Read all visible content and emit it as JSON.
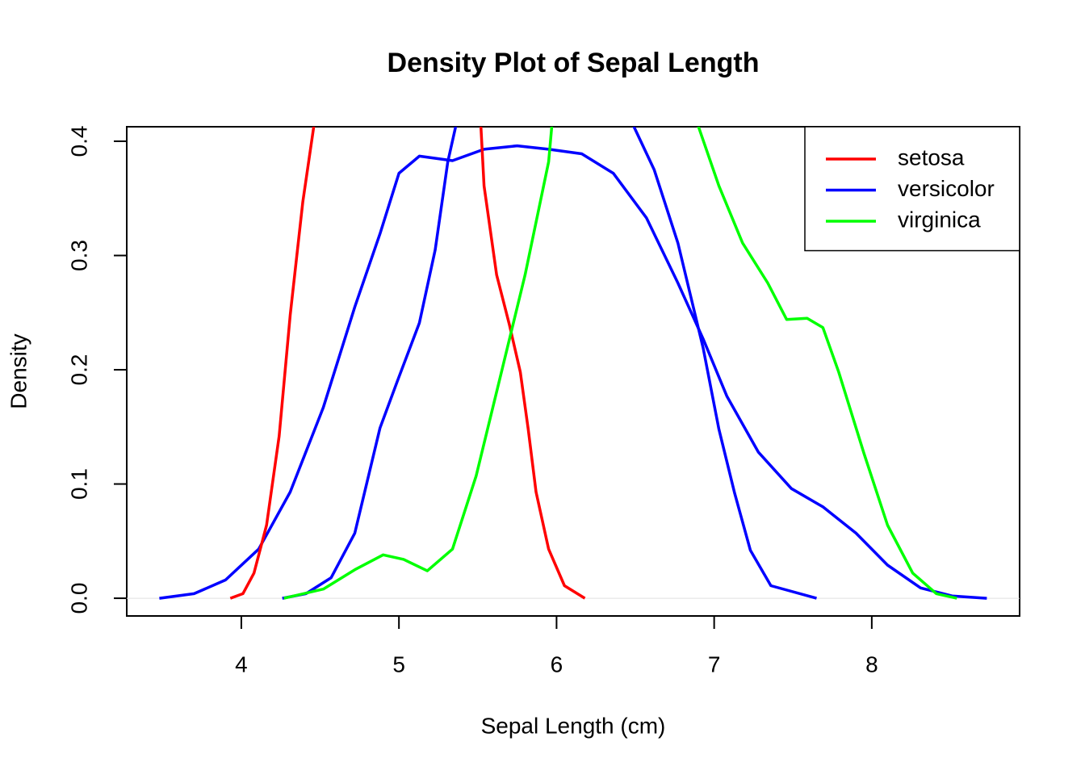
{
  "chart_data": {
    "type": "line",
    "title": "Density Plot of Sepal Length",
    "x_label": "Sepal Length (cm)",
    "y_label": "Density",
    "xlim": [
      3.273,
      8.938
    ],
    "ylim": [
      -0.0155,
      0.4127
    ],
    "xticks": [
      4,
      5,
      6,
      7,
      8
    ],
    "yticks": [
      {
        "value": 0,
        "label": "0.0"
      },
      0.1,
      0.2,
      0.3,
      0.4
    ],
    "zero_line": true,
    "legend": "top-right",
    "series": [
      {
        "color": "#0000ff",
        "x": [
          3.48,
          3.7,
          3.9,
          4.11,
          4.31,
          4.52,
          4.72,
          4.88,
          5.0,
          5.13,
          5.34,
          5.54,
          5.75,
          5.95,
          6.16,
          6.36,
          6.57,
          6.77,
          6.93,
          7.08,
          7.28,
          7.49,
          7.69,
          7.9,
          8.1,
          8.31,
          8.51,
          8.73
        ],
        "values": [
          0,
          0.004,
          0.016,
          0.043,
          0.093,
          0.167,
          0.255,
          0.319,
          0.372,
          0.387,
          0.383,
          0.393,
          0.396,
          0.393,
          0.389,
          0.372,
          0.333,
          0.276,
          0.227,
          0.177,
          0.128,
          0.096,
          0.08,
          0.057,
          0.029,
          0.009,
          0.002,
          0
        ]
      },
      {
        "name": "setosa",
        "color": "#ff0000",
        "x": [
          3.93,
          4.01,
          4.08,
          4.16,
          4.24,
          4.31,
          4.39,
          4.46,
          5.0,
          5.52,
          5.54,
          5.62,
          5.7,
          5.77,
          5.82,
          5.87,
          5.95,
          6.05,
          6.18
        ],
        "values": [
          0,
          0.004,
          0.022,
          0.064,
          0.142,
          0.248,
          0.347,
          0.413,
          null,
          0.413,
          0.361,
          0.283,
          0.24,
          0.198,
          0.148,
          0.093,
          0.043,
          0.011,
          0
        ]
      },
      {
        "name": "versicolor",
        "color": "#0000ff",
        "x": [
          4.26,
          4.41,
          4.57,
          4.72,
          4.88,
          4.99,
          5.13,
          5.23,
          5.31,
          5.36,
          6.0,
          6.49,
          6.62,
          6.77,
          6.93,
          7.03,
          7.13,
          7.23,
          7.36,
          7.65
        ],
        "values": [
          0,
          0.004,
          0.018,
          0.057,
          0.149,
          0.19,
          0.241,
          0.305,
          0.382,
          0.413,
          null,
          0.413,
          0.375,
          0.311,
          0.219,
          0.148,
          0.092,
          0.042,
          0.011,
          0
        ]
      },
      {
        "name": "virginica",
        "color": "#00ff00",
        "x": [
          4.27,
          4.52,
          4.72,
          4.9,
          5.03,
          5.18,
          5.34,
          5.49,
          5.64,
          5.8,
          5.95,
          5.97,
          6.5,
          6.9,
          7.03,
          7.18,
          7.34,
          7.46,
          7.59,
          7.69,
          7.79,
          7.95,
          8.1,
          8.26,
          8.41,
          8.54
        ],
        "values": [
          0,
          0.008,
          0.025,
          0.038,
          0.034,
          0.024,
          0.043,
          0.107,
          0.192,
          0.283,
          0.382,
          0.413,
          null,
          0.413,
          0.361,
          0.311,
          0.276,
          0.244,
          0.245,
          0.237,
          0.198,
          0.127,
          0.064,
          0.022,
          0.004,
          0
        ]
      }
    ]
  }
}
